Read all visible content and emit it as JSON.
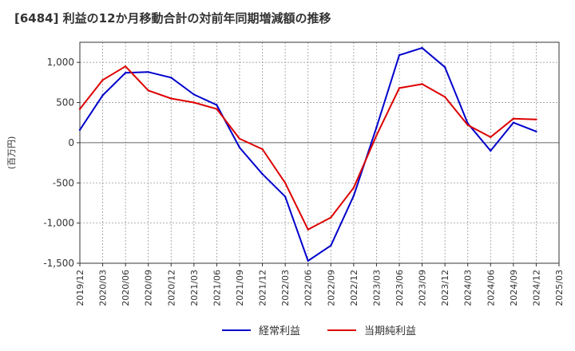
{
  "chart_data": {
    "type": "line",
    "title": "[6484]  利益の12か月移動合計の対前年同期増減額の推移",
    "ylabel": "(百万円)",
    "xlabel": "",
    "ylim": [
      -1500,
      1250
    ],
    "yticks": [
      1000,
      500,
      0,
      -500,
      -1000,
      -1500
    ],
    "ytick_labels": [
      "1,000",
      "500",
      "0",
      "-500",
      "-1,000",
      "-1,500"
    ],
    "x": [
      "2019/12",
      "2020/03",
      "2020/06",
      "2020/09",
      "2020/12",
      "2021/03",
      "2021/06",
      "2021/09",
      "2021/12",
      "2022/03",
      "2022/06",
      "2022/09",
      "2022/12",
      "2023/03",
      "2023/06",
      "2023/09",
      "2023/12",
      "2024/03",
      "2024/06",
      "2024/09",
      "2024/12",
      "2025/03"
    ],
    "grid": true,
    "legend_position": "bottom",
    "series": [
      {
        "name": "経常利益",
        "color": "#0000cc",
        "values": [
          160,
          590,
          870,
          880,
          810,
          600,
          470,
          -60,
          -390,
          -670,
          -1470,
          -1280,
          -660,
          190,
          1090,
          1180,
          940,
          240,
          -100,
          250,
          140,
          null
        ]
      },
      {
        "name": "当期純利益",
        "color": "#dd0000",
        "values": [
          420,
          780,
          950,
          650,
          550,
          500,
          420,
          50,
          -80,
          -500,
          -1080,
          -930,
          -560,
          90,
          680,
          730,
          570,
          220,
          70,
          300,
          290,
          null
        ]
      }
    ]
  }
}
